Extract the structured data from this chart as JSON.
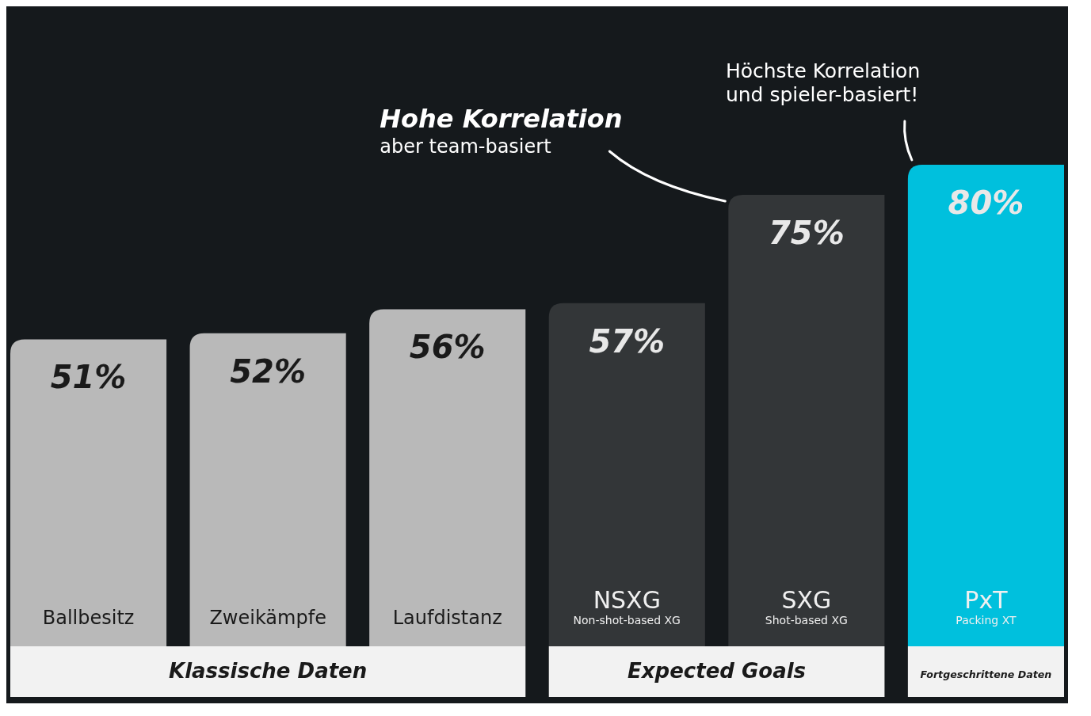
{
  "chart_data": {
    "type": "bar",
    "categories": [
      "Ballbesitz",
      "Zweikämpfe",
      "Laufdistanz",
      "NSXG\nNon-shot-based XG",
      "SXG\nShot-based XG",
      "PxT\nPacking XT"
    ],
    "values": [
      51,
      52,
      56,
      57,
      75,
      80
    ],
    "value_labels": [
      "51%",
      "52%",
      "56%",
      "57%",
      "75%",
      "80%"
    ],
    "colors": [
      "#b9b9b9",
      "#b9b9b9",
      "#b9b9b9",
      "#333638",
      "#333638",
      "#00c0dd"
    ],
    "annotations": [
      "Hohe Korrelation\naber team-basiert",
      "Höchste Korrelation\nund spieler-basiert!",
      "Klassische Daten",
      "Expected Goals",
      "Fortgeschrittene Daten"
    ]
  }
}
